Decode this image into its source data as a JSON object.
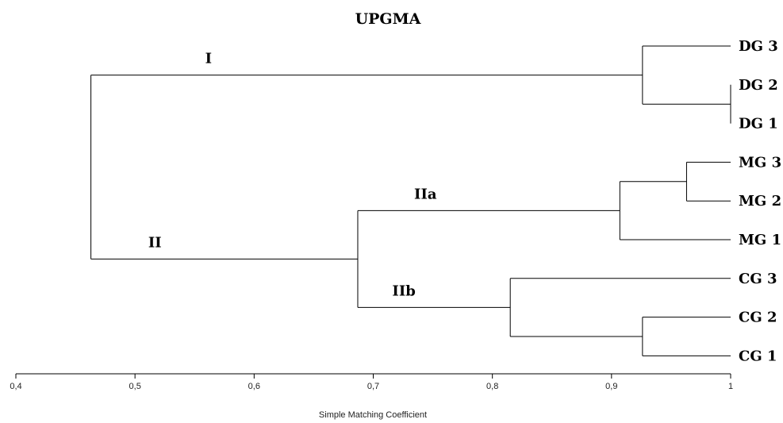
{
  "chart_data": {
    "type": "dendrogram",
    "title": "UPGMA",
    "xlabel": "Simple Matching Coefficient",
    "xlim": [
      0.4,
      1.0
    ],
    "xticks": [
      0.4,
      0.5,
      0.6,
      0.7,
      0.8,
      0.9,
      1.0
    ],
    "xtick_labels": [
      "0,4",
      "0,5",
      "0,6",
      "0,7",
      "0,8",
      "0,9",
      "1"
    ],
    "leaves": [
      "DG 3",
      "DG 2",
      "DG 1",
      "MG 3",
      "MG 2",
      "MG 1",
      "CG 3",
      "CG 2",
      "CG 1"
    ],
    "nodes": [
      {
        "id": "n_dg12",
        "similarity": 1.0,
        "children": [
          "DG 2",
          "DG 1"
        ]
      },
      {
        "id": "n_dg",
        "similarity": 0.926,
        "children": [
          "DG 3",
          "n_dg12"
        ]
      },
      {
        "id": "n_mg23",
        "similarity": 0.963,
        "children": [
          "MG 3",
          "MG 2"
        ]
      },
      {
        "id": "n_mg",
        "similarity": 0.907,
        "children": [
          "n_mg23",
          "MG 1"
        ]
      },
      {
        "id": "n_cg12",
        "similarity": 0.926,
        "children": [
          "CG 2",
          "CG 1"
        ]
      },
      {
        "id": "n_cg",
        "similarity": 0.815,
        "children": [
          "CG 3",
          "n_cg12"
        ]
      },
      {
        "id": "n_ii",
        "similarity": 0.687,
        "children": [
          "n_mg",
          "n_cg"
        ]
      },
      {
        "id": "n_root",
        "similarity": 0.463,
        "children": [
          "n_dg",
          "n_ii"
        ]
      }
    ],
    "cluster_labels": [
      {
        "text": "I",
        "node": "n_dg"
      },
      {
        "text": "II",
        "node": "n_ii"
      },
      {
        "text": "IIa",
        "node": "n_mg"
      },
      {
        "text": "IIb",
        "node": "n_cg"
      }
    ]
  }
}
